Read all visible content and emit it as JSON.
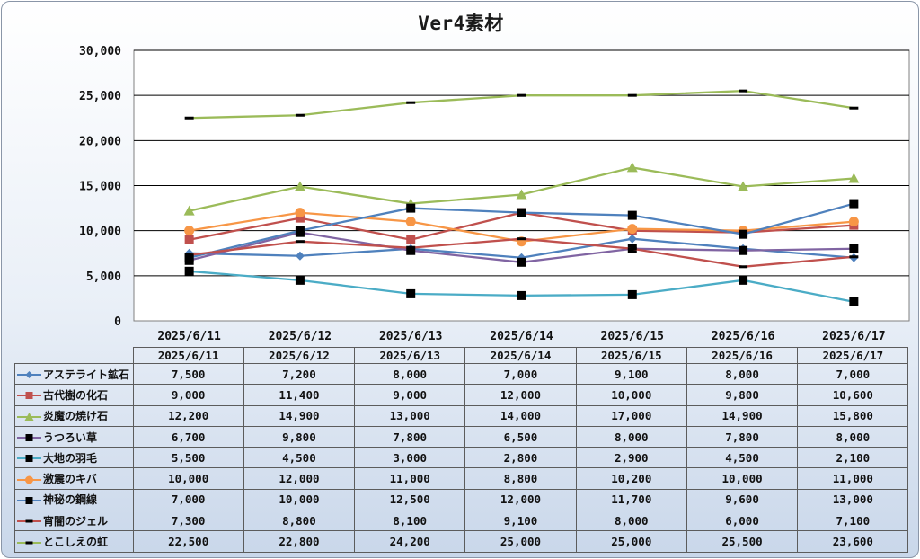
{
  "chart_data": {
    "type": "line",
    "title": "Ver4素材",
    "categories": [
      "2025/6/11",
      "2025/6/12",
      "2025/6/13",
      "2025/6/14",
      "2025/6/15",
      "2025/6/16",
      "2025/6/17"
    ],
    "ylim": [
      0,
      30000
    ],
    "yticks": [
      "0",
      "5,000",
      "10,000",
      "15,000",
      "20,000",
      "25,000",
      "30,000"
    ],
    "grid": true,
    "legend": "data-table",
    "series": [
      {
        "name": "アステライト鉱石",
        "values": [
          7500,
          7200,
          8000,
          7000,
          9100,
          8000,
          7000
        ],
        "labels": [
          "7,500",
          "7,200",
          "8,000",
          "7,000",
          "9,100",
          "8,000",
          "7,000"
        ],
        "color": "#4f81bd",
        "marker": "diamond"
      },
      {
        "name": "古代樹の化石",
        "values": [
          9000,
          11400,
          9000,
          12000,
          10000,
          9800,
          10600
        ],
        "labels": [
          "9,000",
          "11,400",
          "9,000",
          "12,000",
          "10,000",
          "9,800",
          "10,600"
        ],
        "color": "#c0504d",
        "marker": "square"
      },
      {
        "name": "炎魔の焼け石",
        "values": [
          12200,
          14900,
          13000,
          14000,
          17000,
          14900,
          15800
        ],
        "labels": [
          "12,200",
          "14,900",
          "13,000",
          "14,000",
          "17,000",
          "14,900",
          "15,800"
        ],
        "color": "#9bbb59",
        "marker": "triangle"
      },
      {
        "name": "うつろい草",
        "values": [
          6700,
          9800,
          7800,
          6500,
          8000,
          7800,
          8000
        ],
        "labels": [
          "6,700",
          "9,800",
          "7,800",
          "6,500",
          "8,000",
          "7,800",
          "8,000"
        ],
        "color": "#8064a2",
        "marker": "blacksquare"
      },
      {
        "name": "大地の羽毛",
        "values": [
          5500,
          4500,
          3000,
          2800,
          2900,
          4500,
          2100
        ],
        "labels": [
          "5,500",
          "4,500",
          "3,000",
          "2,800",
          "2,900",
          "4,500",
          "2,100"
        ],
        "color": "#4bacc6",
        "marker": "blacksquare"
      },
      {
        "name": "激震のキバ",
        "values": [
          10000,
          12000,
          11000,
          8800,
          10200,
          10000,
          11000
        ],
        "labels": [
          "10,000",
          "12,000",
          "11,000",
          "8,800",
          "10,200",
          "10,000",
          "11,000"
        ],
        "color": "#f79646",
        "marker": "circle"
      },
      {
        "name": "神秘の鋼線",
        "values": [
          7000,
          10000,
          12500,
          12000,
          11700,
          9600,
          13000
        ],
        "labels": [
          "7,000",
          "10,000",
          "12,500",
          "12,000",
          "11,700",
          "9,600",
          "13,000"
        ],
        "color": "#4f81bd",
        "marker": "blacksquare"
      },
      {
        "name": "宵闇のジェル",
        "values": [
          7300,
          8800,
          8100,
          9100,
          8000,
          6000,
          7100
        ],
        "labels": [
          "7,300",
          "8,800",
          "8,100",
          "9,100",
          "8,000",
          "6,000",
          "7,100"
        ],
        "color": "#c0504d",
        "marker": "dash"
      },
      {
        "name": "とこしえの虹",
        "values": [
          22500,
          22800,
          24200,
          25000,
          25000,
          25500,
          23600
        ],
        "labels": [
          "22,500",
          "22,800",
          "24,200",
          "25,000",
          "25,000",
          "25,500",
          "23,600"
        ],
        "color": "#9bbb59",
        "marker": "dash"
      }
    ]
  }
}
